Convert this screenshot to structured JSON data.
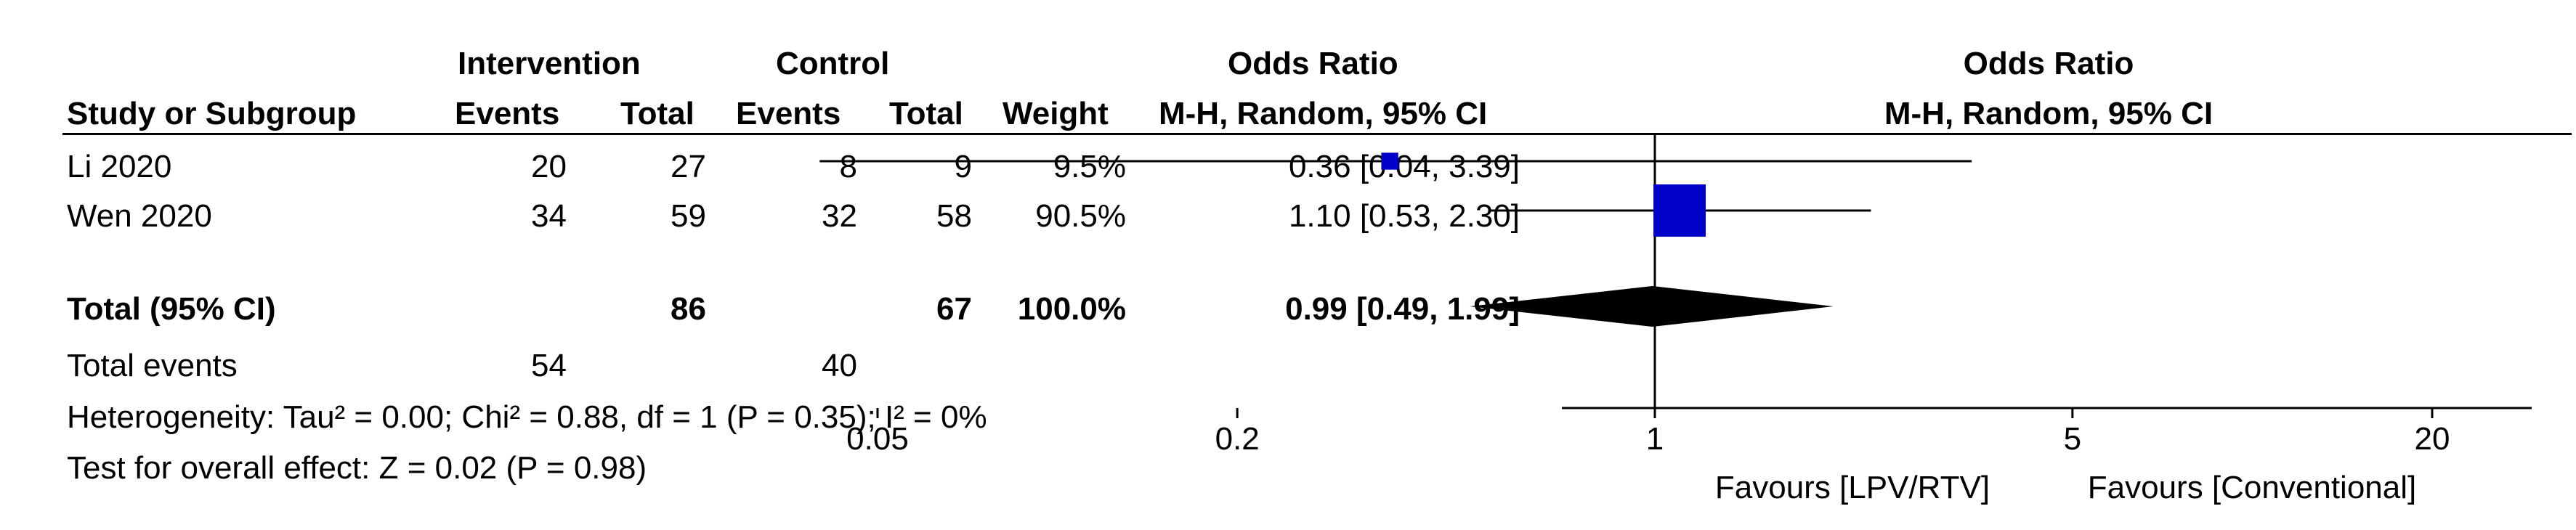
{
  "header": {
    "group1": "Intervention",
    "group2": "Control",
    "or_title": "Odds Ratio",
    "study": "Study or Subgroup",
    "events1": "Events",
    "total1": "Total",
    "events2": "Events",
    "total2": "Total",
    "weight": "Weight",
    "method": "M-H, Random, 95% CI",
    "plot_title": "Odds Ratio",
    "plot_method": "M-H, Random, 95% CI"
  },
  "studies": [
    {
      "name": "Li 2020",
      "events1": "20",
      "total1": "27",
      "events2": "8",
      "total2": "9",
      "weight": "9.5%",
      "ci_text": "0.36 [0.04, 3.39]"
    },
    {
      "name": "Wen 2020",
      "events1": "34",
      "total1": "59",
      "events2": "32",
      "total2": "58",
      "weight": "90.5%",
      "ci_text": "1.10 [0.53, 2.30]"
    }
  ],
  "total": {
    "name": "Total (95% CI)",
    "total1": "86",
    "total2": "67",
    "weight": "100.0%",
    "ci_text": "0.99 [0.49, 1.99]"
  },
  "events": {
    "label": "Total events",
    "events1": "54",
    "events2": "40"
  },
  "heterogeneity": "Heterogeneity: Tau² = 0.00; Chi² = 0.88, df = 1 (P = 0.35); I² = 0%",
  "overall_effect": "Test for overall effect: Z = 0.02 (P = 0.98)",
  "axis": {
    "favours_left": "Favours [LPV/RTV]",
    "favours_right": "Favours [Conventional]"
  },
  "chart_data": {
    "type": "forest",
    "scale": "log",
    "xlim": [
      0.05,
      20
    ],
    "ticks": [
      0.05,
      0.2,
      1,
      5,
      20
    ],
    "tick_labels": [
      "0.05",
      "0.2",
      "1",
      "5",
      "20"
    ],
    "studies": [
      {
        "name": "Li 2020",
        "or": 0.36,
        "lower": 0.04,
        "upper": 3.39,
        "weight": 9.5
      },
      {
        "name": "Wen 2020",
        "or": 1.1,
        "lower": 0.53,
        "upper": 2.3,
        "weight": 90.5
      }
    ],
    "pooled": {
      "or": 0.99,
      "lower": 0.49,
      "upper": 1.99
    },
    "colors": {
      "study_marker": "#0000c8",
      "pooled_marker": "#000000",
      "line": "#000000"
    }
  }
}
